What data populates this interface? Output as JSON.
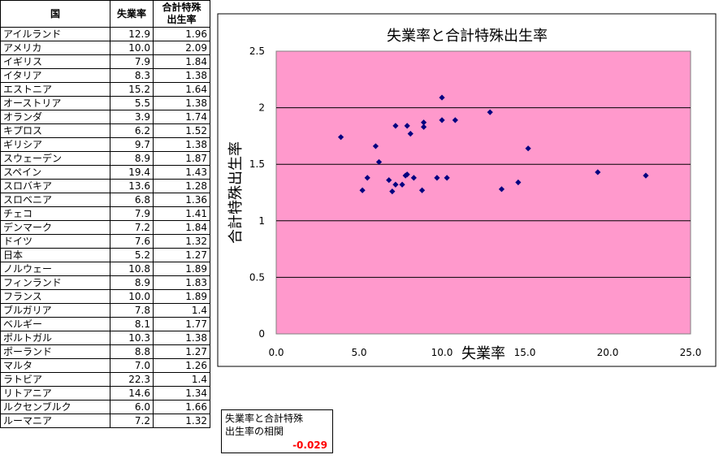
{
  "table": {
    "headers": [
      "国",
      "失業率",
      "合計特殊出生率"
    ],
    "rows": [
      [
        "アイルランド",
        "12.9",
        "1.96"
      ],
      [
        "アメリカ",
        "10.0",
        "2.09"
      ],
      [
        "イギリス",
        "7.9",
        "1.84"
      ],
      [
        "イタリア",
        "8.3",
        "1.38"
      ],
      [
        "エストニア",
        "15.2",
        "1.64"
      ],
      [
        "オーストリア",
        "5.5",
        "1.38"
      ],
      [
        "オランダ",
        "3.9",
        "1.74"
      ],
      [
        "キプロス",
        "6.2",
        "1.52"
      ],
      [
        "ギリシア",
        "9.7",
        "1.38"
      ],
      [
        "スウェーデン",
        "8.9",
        "1.87"
      ],
      [
        "スペイン",
        "19.4",
        "1.43"
      ],
      [
        "スロバキア",
        "13.6",
        "1.28"
      ],
      [
        "スロベニア",
        "6.8",
        "1.36"
      ],
      [
        "チェコ",
        "7.9",
        "1.41"
      ],
      [
        "デンマーク",
        "7.2",
        "1.84"
      ],
      [
        "ドイツ",
        "7.6",
        "1.32"
      ],
      [
        "日本",
        "5.2",
        "1.27"
      ],
      [
        "ノルウェー",
        "10.8",
        "1.89"
      ],
      [
        "フィンランド",
        "8.9",
        "1.83"
      ],
      [
        "フランス",
        "10.0",
        "1.89"
      ],
      [
        "ブルガリア",
        "7.8",
        "1.4"
      ],
      [
        "ベルギー",
        "8.1",
        "1.77"
      ],
      [
        "ポルトガル",
        "10.3",
        "1.38"
      ],
      [
        "ポーランド",
        "8.8",
        "1.27"
      ],
      [
        "マルタ",
        "7.0",
        "1.26"
      ],
      [
        "ラトビア",
        "22.3",
        "1.4"
      ],
      [
        "リトアニア",
        "14.6",
        "1.34"
      ],
      [
        "ルクセンブルク",
        "6.0",
        "1.66"
      ],
      [
        "ルーマニア",
        "7.2",
        "1.32"
      ]
    ]
  },
  "correlation": {
    "label_line1": "失業率と合計特殊",
    "label_line2": "出生率の相関",
    "value": "-0.029"
  },
  "colors": {
    "plot_bg": "#ff99cc",
    "marker": "#000080",
    "corr_value": "#ff0000"
  },
  "chart_data": {
    "type": "scatter",
    "title": "失業率と合計特殊出生率",
    "xlabel": "失業率",
    "ylabel": "合計特殊出生率",
    "xlim": [
      0,
      25
    ],
    "ylim": [
      0,
      2.5
    ],
    "xticks": [
      "0.0",
      "5.0",
      "10.0",
      "15.0",
      "20.0",
      "25.0"
    ],
    "yticks": [
      "0",
      "0.5",
      "1",
      "1.5",
      "2",
      "2.5"
    ],
    "grid": "horizontal",
    "x": [
      12.9,
      10.0,
      7.9,
      8.3,
      15.2,
      5.5,
      3.9,
      6.2,
      9.7,
      8.9,
      19.4,
      13.6,
      6.8,
      7.9,
      7.2,
      7.6,
      5.2,
      10.8,
      8.9,
      10.0,
      7.8,
      8.1,
      10.3,
      8.8,
      7.0,
      22.3,
      14.6,
      6.0,
      7.2
    ],
    "y": [
      1.96,
      2.09,
      1.84,
      1.38,
      1.64,
      1.38,
      1.74,
      1.52,
      1.38,
      1.87,
      1.43,
      1.28,
      1.36,
      1.41,
      1.84,
      1.32,
      1.27,
      1.89,
      1.83,
      1.89,
      1.4,
      1.77,
      1.38,
      1.27,
      1.26,
      1.4,
      1.34,
      1.66,
      1.32
    ]
  }
}
